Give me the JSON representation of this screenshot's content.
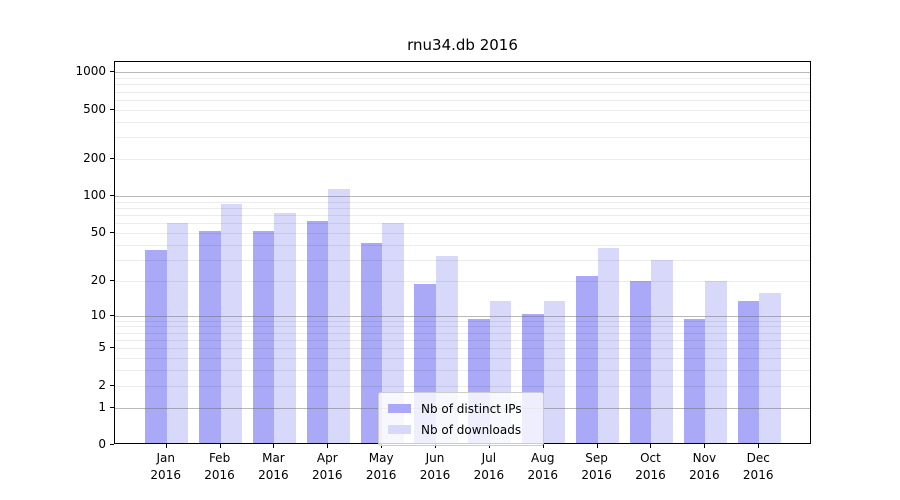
{
  "figure": {
    "title": "rnu34.db 2016"
  },
  "chart_data": {
    "type": "bar",
    "title": "rnu34.db 2016",
    "categories": [
      "Jan",
      "Feb",
      "Mar",
      "Apr",
      "May",
      "Jun",
      "Jul",
      "Aug",
      "Sep",
      "Oct",
      "Nov",
      "Dec"
    ],
    "category_year": "2016",
    "series": [
      {
        "name": "Nb of distinct IPs",
        "color": "#a9a9f8",
        "values": [
          35,
          50,
          50,
          60,
          40,
          18,
          9,
          10,
          21,
          19,
          9,
          13
        ]
      },
      {
        "name": "Nb of downloads",
        "color": "#d8d8fa",
        "values": [
          58,
          83,
          70,
          110,
          58,
          31,
          13,
          13,
          36,
          29,
          19,
          15
        ]
      }
    ],
    "xlabel": "",
    "ylabel": "",
    "yscale": "log1p",
    "yticks": [
      0,
      1,
      2,
      5,
      10,
      20,
      50,
      100,
      200,
      500,
      1000
    ],
    "major_grid_values": [
      1,
      10,
      100,
      1000
    ],
    "ylim": [
      0,
      1211
    ],
    "xlim": [
      -0.96,
      11.98
    ],
    "grid": true,
    "legend_position": "lower center"
  }
}
